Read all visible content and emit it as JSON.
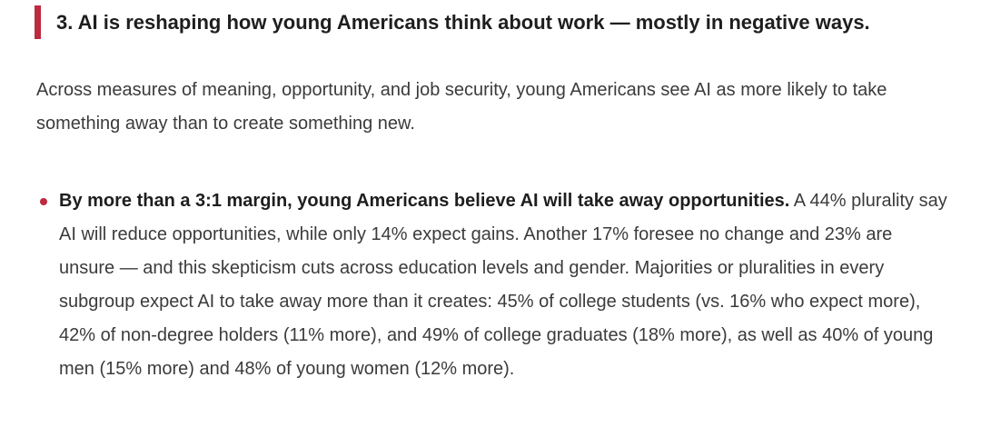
{
  "theme": {
    "accent": "#bc2a3e",
    "heading_color": "#1e1e1e",
    "body_color": "#3b3b3b",
    "background": "#ffffff"
  },
  "section": {
    "heading": "3. AI is reshaping how young Americans think about work — mostly in negative ways.",
    "intro": "Across measures of meaning, opportunity, and job security, young Americans see AI as more likely to take something away than to create something new.",
    "bullets": [
      {
        "lead": "By more than a 3:1 margin, young Americans believe AI will take away opportunities.",
        "body": "A 44% plurality say AI will reduce opportunities, while only 14% expect gains. Another 17% foresee no change and 23% are unsure — and this skepticism cuts across education levels and gender. Majorities or pluralities in every subgroup expect AI to take away more than it creates: 45% of college students (vs. 16% who expect more), 42% of non-degree holders (11% more), and 49% of college graduates (18% more), as well as 40% of young men (15% more) and 48% of young women (12% more)."
      }
    ]
  }
}
